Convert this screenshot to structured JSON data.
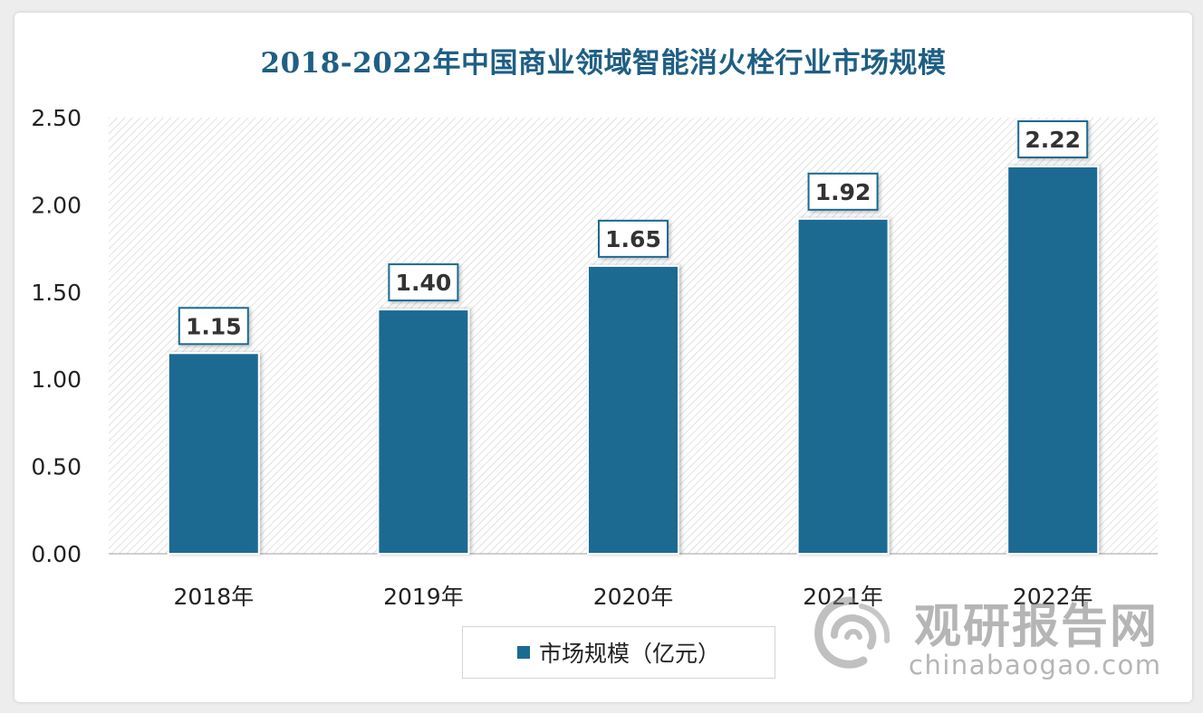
{
  "colors": {
    "bar": "#1b6a92",
    "title": "#1f5f84",
    "plot_hatch": "#c9c9c9"
  },
  "watermark": {
    "name": "观研报告网",
    "url": "chinabaogao.com",
    "icon": "swirl-logo-icon"
  },
  "chart_data": {
    "type": "bar",
    "title": "2018-2022年中国商业领域智能消火栓行业市场规模",
    "categories": [
      "2018年",
      "2019年",
      "2020年",
      "2021年",
      "2022年"
    ],
    "series": [
      {
        "name": "市场规模（亿元）",
        "values": [
          1.15,
          1.4,
          1.65,
          1.92,
          2.22
        ],
        "labels": [
          "1.15",
          "1.40",
          "1.65",
          "1.92",
          "2.22"
        ]
      }
    ],
    "ylim": [
      0,
      2.5
    ],
    "yticks": [
      "0.00",
      "0.50",
      "1.00",
      "1.50",
      "2.00",
      "2.50"
    ],
    "xlabel": "",
    "ylabel": "",
    "legend": "bottom",
    "grid": false
  }
}
